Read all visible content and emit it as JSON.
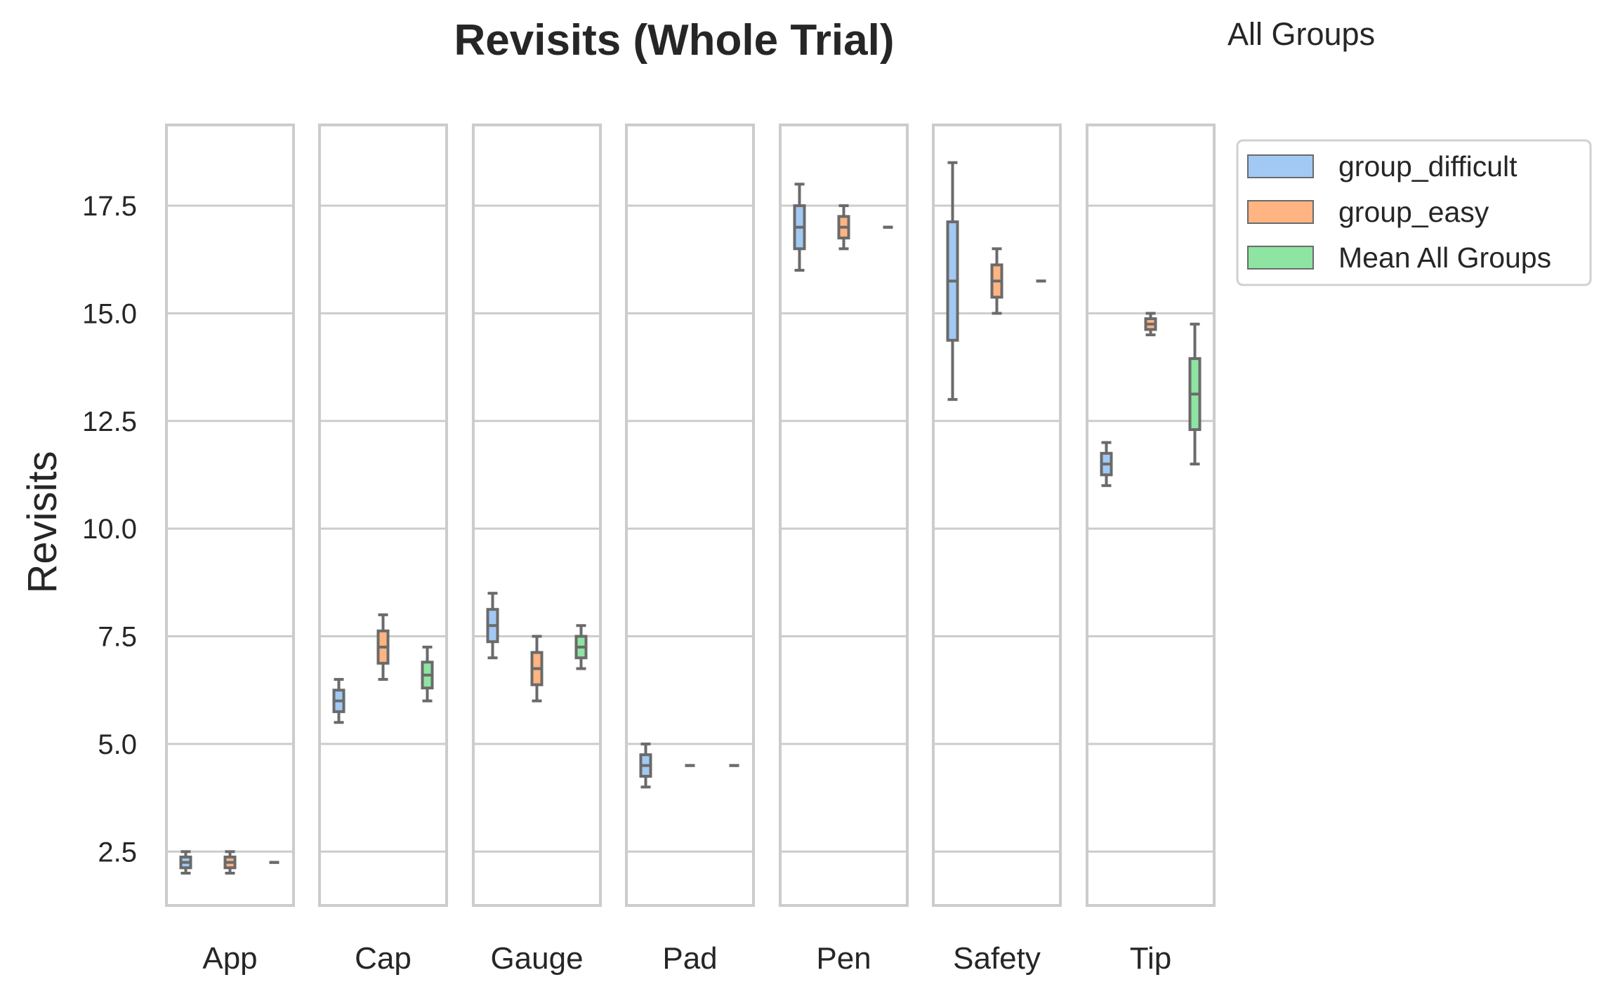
{
  "chart_data": {
    "type": "box",
    "title": "Revisits (Whole Trial)",
    "subtitle": "All Groups",
    "ylabel": "Revisits",
    "xlabel": "",
    "ylim": [
      1.25,
      19.375
    ],
    "yticks": [
      "2.5",
      "5.0",
      "7.5",
      "10.0",
      "12.5",
      "15.0",
      "17.5"
    ],
    "ytick_values": [
      2.5,
      5.0,
      7.5,
      10.0,
      12.5,
      15.0,
      17.5
    ],
    "grid": true,
    "legend_position": "upper-right-outside",
    "series": [
      {
        "name": "group_difficult",
        "color": "#a1c9f4"
      },
      {
        "name": "group_easy",
        "color": "#ffb482"
      },
      {
        "name": "Mean All Groups",
        "color": "#8de5a1"
      }
    ],
    "panels": [
      {
        "category": "App",
        "boxes": [
          {
            "min": 2.0,
            "q1": 2.125,
            "median": 2.25,
            "q3": 2.375,
            "max": 2.5
          },
          {
            "min": 2.0,
            "q1": 2.125,
            "median": 2.25,
            "q3": 2.375,
            "max": 2.5
          },
          {
            "min": 2.25,
            "q1": 2.25,
            "median": 2.25,
            "q3": 2.25,
            "max": 2.25
          }
        ]
      },
      {
        "category": "Cap",
        "boxes": [
          {
            "min": 5.5,
            "q1": 5.75,
            "median": 6.0,
            "q3": 6.25,
            "max": 6.5
          },
          {
            "min": 6.5,
            "q1": 6.875,
            "median": 7.25,
            "q3": 7.625,
            "max": 8.0
          },
          {
            "min": 6.0,
            "q1": 6.3,
            "median": 6.6,
            "q3": 6.9,
            "max": 7.25
          }
        ]
      },
      {
        "category": "Gauge",
        "boxes": [
          {
            "min": 7.0,
            "q1": 7.375,
            "median": 7.75,
            "q3": 8.125,
            "max": 8.5
          },
          {
            "min": 6.0,
            "q1": 6.375,
            "median": 6.75,
            "q3": 7.125,
            "max": 7.5
          },
          {
            "min": 6.75,
            "q1": 7.0,
            "median": 7.25,
            "q3": 7.5,
            "max": 7.75
          }
        ]
      },
      {
        "category": "Pad",
        "boxes": [
          {
            "min": 4.0,
            "q1": 4.25,
            "median": 4.5,
            "q3": 4.75,
            "max": 5.0
          },
          {
            "min": 4.5,
            "q1": 4.5,
            "median": 4.5,
            "q3": 4.5,
            "max": 4.5
          },
          {
            "min": 4.5,
            "q1": 4.5,
            "median": 4.5,
            "q3": 4.5,
            "max": 4.5
          }
        ]
      },
      {
        "category": "Pen",
        "boxes": [
          {
            "min": 16.0,
            "q1": 16.5,
            "median": 17.0,
            "q3": 17.5,
            "max": 18.0
          },
          {
            "min": 16.5,
            "q1": 16.75,
            "median": 17.0,
            "q3": 17.25,
            "max": 17.5
          },
          {
            "min": 17.0,
            "q1": 17.0,
            "median": 17.0,
            "q3": 17.0,
            "max": 17.0
          }
        ]
      },
      {
        "category": "Safety",
        "boxes": [
          {
            "min": 13.0,
            "q1": 14.375,
            "median": 15.75,
            "q3": 17.125,
            "max": 18.5
          },
          {
            "min": 15.0,
            "q1": 15.375,
            "median": 15.75,
            "q3": 16.125,
            "max": 16.5
          },
          {
            "min": 15.75,
            "q1": 15.75,
            "median": 15.75,
            "q3": 15.75,
            "max": 15.75
          }
        ]
      },
      {
        "category": "Tip",
        "boxes": [
          {
            "min": 11.0,
            "q1": 11.25,
            "median": 11.5,
            "q3": 11.75,
            "max": 12.0
          },
          {
            "min": 14.5,
            "q1": 14.625,
            "median": 14.75,
            "q3": 14.875,
            "max": 15.0
          },
          {
            "min": 11.5,
            "q1": 12.3,
            "median": 13.125,
            "q3": 13.95,
            "max": 14.75
          }
        ]
      }
    ]
  }
}
